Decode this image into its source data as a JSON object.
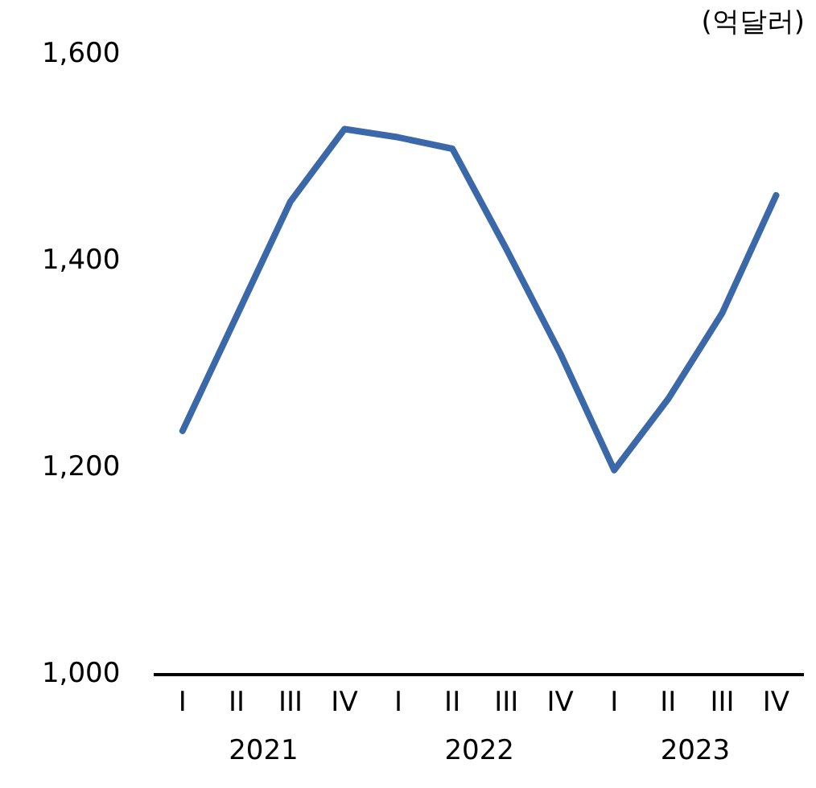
{
  "chart_data": {
    "type": "line",
    "ylabel": "(억달러)",
    "categories": [
      "I",
      "II",
      "III",
      "IV",
      "I",
      "II",
      "III",
      "IV",
      "I",
      "II",
      "III",
      "IV"
    ],
    "annotations": [
      "2021",
      "2022",
      "2023"
    ],
    "series": [
      {
        "color": "#3a68a8",
        "values": [
          1236,
          1347,
          1458,
          1528,
          1520,
          1509,
          1412,
          1311,
          1198,
          1267,
          1350,
          1464
        ]
      }
    ],
    "ylim": [
      1000,
      1600
    ],
    "yticks": [
      {
        "value": 1000,
        "label": "1,000"
      },
      {
        "value": 1200,
        "label": "1,200"
      },
      {
        "value": 1400,
        "label": "1,400"
      },
      {
        "value": 1600,
        "label": "1,600"
      }
    ],
    "grid": false,
    "legend": false,
    "marker": "none",
    "line_style": "solid"
  }
}
